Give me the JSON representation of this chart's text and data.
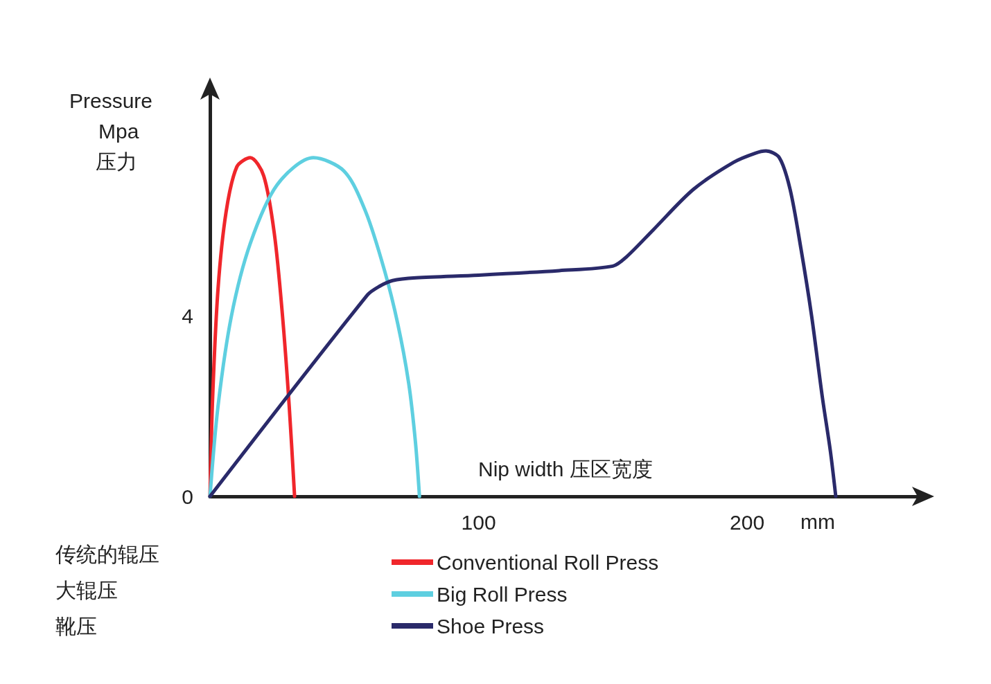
{
  "chart_data": {
    "type": "line",
    "xlabel": "Nip width 压区宽度",
    "ylabel": "Pressure\nMpa\n压力",
    "annotations": [
      "传统的辊压",
      "大辊压",
      "靴压",
      "mm"
    ],
    "xlim": [
      0,
      265
    ],
    "ylim": [
      0,
      9
    ],
    "xticks": [
      100,
      200
    ],
    "yticks": [
      0,
      4
    ],
    "grid": false,
    "legend": "bottom",
    "marker": "none",
    "line_style": "solid",
    "series": [
      {
        "name": "Conventional Roll Press",
        "color": "#f0262b",
        "x": [
          0,
          1,
          3,
          6,
          10,
          15,
          20,
          24,
          27,
          29.5,
          31.5
        ],
        "values": [
          0,
          2.2,
          4.6,
          6.3,
          7.3,
          7.5,
          7.1,
          5.8,
          4,
          2,
          0
        ]
      },
      {
        "name": "Big Roll Press",
        "color": "#5ecfe0",
        "x": [
          0,
          3,
          8,
          15,
          25,
          38.5,
          50,
          58,
          65,
          70,
          74,
          76.5,
          78
        ],
        "values": [
          0,
          2,
          4,
          5.6,
          6.9,
          7.5,
          7.2,
          6.3,
          5,
          3.8,
          2.5,
          1.2,
          0
        ]
      },
      {
        "name": "Shoe Press",
        "color": "#2a2a6a",
        "x": [
          0,
          58.6,
          63,
          68,
          76.7,
          100,
          130,
          150,
          155,
          165,
          180,
          195,
          203,
          207,
          212,
          216,
          220,
          224,
          228,
          231,
          233
        ],
        "values": [
          0,
          4.46,
          4.65,
          4.78,
          4.84,
          4.9,
          5,
          5.1,
          5.3,
          5.9,
          6.8,
          7.4,
          7.6,
          7.65,
          7.5,
          6.8,
          5.5,
          4,
          2.2,
          1,
          0
        ]
      }
    ]
  }
}
